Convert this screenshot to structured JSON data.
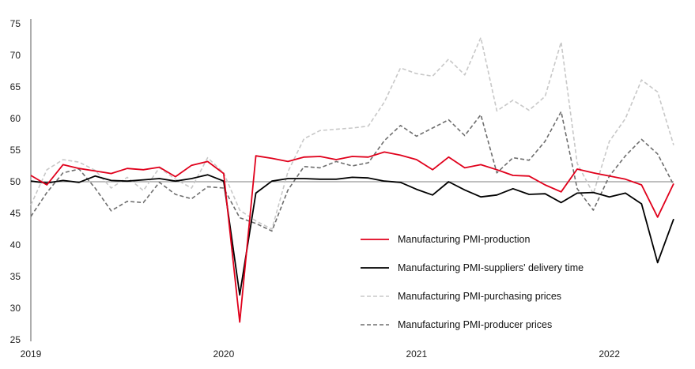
{
  "chart_data": {
    "type": "line",
    "title": "",
    "xlabel": "",
    "ylabel": "",
    "ylim": [
      25,
      75
    ],
    "yticks": [
      25,
      30,
      35,
      40,
      45,
      50,
      55,
      60,
      65,
      70,
      75
    ],
    "x_tick_labels": [
      "2019",
      "2020",
      "2021",
      "2022"
    ],
    "x": [
      "2019-01",
      "2019-02",
      "2019-03",
      "2019-04",
      "2019-05",
      "2019-06",
      "2019-07",
      "2019-08",
      "2019-09",
      "2019-10",
      "2019-11",
      "2019-12",
      "2020-01",
      "2020-02",
      "2020-03",
      "2020-04",
      "2020-05",
      "2020-06",
      "2020-07",
      "2020-08",
      "2020-09",
      "2020-10",
      "2020-11",
      "2020-12",
      "2021-01",
      "2021-02",
      "2021-03",
      "2021-04",
      "2021-05",
      "2021-06",
      "2021-07",
      "2021-08",
      "2021-09",
      "2021-10",
      "2021-11",
      "2021-12",
      "2022-01",
      "2022-02",
      "2022-03",
      "2022-04",
      "2022-05"
    ],
    "reference_line": 50,
    "grid": false,
    "legend_position": "bottom-right",
    "series": [
      {
        "name": "Manufacturing PMI-production",
        "color": "#e0001b",
        "style": "solid",
        "values": [
          51.0,
          49.5,
          52.7,
          52.1,
          51.7,
          51.3,
          52.1,
          51.9,
          52.3,
          50.8,
          52.6,
          53.2,
          51.3,
          27.8,
          54.1,
          53.7,
          53.2,
          53.9,
          54.0,
          53.5,
          54.0,
          53.9,
          54.7,
          54.2,
          53.5,
          51.9,
          53.9,
          52.2,
          52.7,
          51.9,
          51.0,
          50.9,
          49.5,
          48.4,
          52.0,
          51.4,
          50.9,
          50.4,
          49.5,
          44.4,
          49.7
        ]
      },
      {
        "name": "Manufacturing PMI-suppliers' delivery time",
        "color": "#000000",
        "style": "solid",
        "values": [
          50.1,
          49.8,
          50.2,
          49.9,
          50.9,
          50.2,
          50.1,
          50.3,
          50.5,
          50.1,
          50.5,
          51.1,
          50.1,
          32.1,
          48.2,
          50.1,
          50.5,
          50.5,
          50.4,
          50.4,
          50.7,
          50.6,
          50.1,
          49.9,
          48.8,
          47.9,
          50.0,
          48.7,
          47.6,
          47.9,
          48.9,
          48.0,
          48.1,
          46.7,
          48.2,
          48.3,
          47.6,
          48.2,
          46.5,
          37.2,
          44.1
        ]
      },
      {
        "name": "Manufacturing PMI-purchasing prices",
        "color": "#c8c8c8",
        "style": "dashed",
        "values": [
          46.3,
          51.9,
          53.5,
          53.1,
          51.8,
          49.0,
          50.7,
          48.6,
          52.2,
          50.4,
          49.0,
          53.8,
          51.4,
          45.5,
          43.8,
          42.5,
          51.6,
          56.8,
          58.1,
          58.3,
          58.5,
          58.8,
          62.6,
          68.0,
          67.1,
          66.7,
          69.4,
          66.9,
          72.8,
          61.2,
          62.9,
          61.3,
          63.5,
          72.1,
          52.9,
          48.1,
          56.4,
          60.0,
          66.1,
          64.2,
          55.8
        ]
      },
      {
        "name": "Manufacturing PMI-producer prices",
        "color": "#6e6e6e",
        "style": "dashed",
        "values": [
          44.5,
          48.3,
          51.4,
          52.0,
          49.0,
          45.4,
          46.9,
          46.7,
          49.9,
          48.0,
          47.3,
          49.2,
          49.0,
          44.3,
          43.4,
          42.2,
          48.7,
          52.4,
          52.2,
          53.2,
          52.5,
          53.0,
          56.5,
          58.9,
          57.2,
          58.5,
          59.8,
          57.3,
          60.6,
          51.4,
          53.8,
          53.4,
          56.4,
          61.1,
          48.9,
          45.5,
          50.9,
          54.1,
          56.7,
          54.4,
          49.5
        ]
      }
    ]
  }
}
